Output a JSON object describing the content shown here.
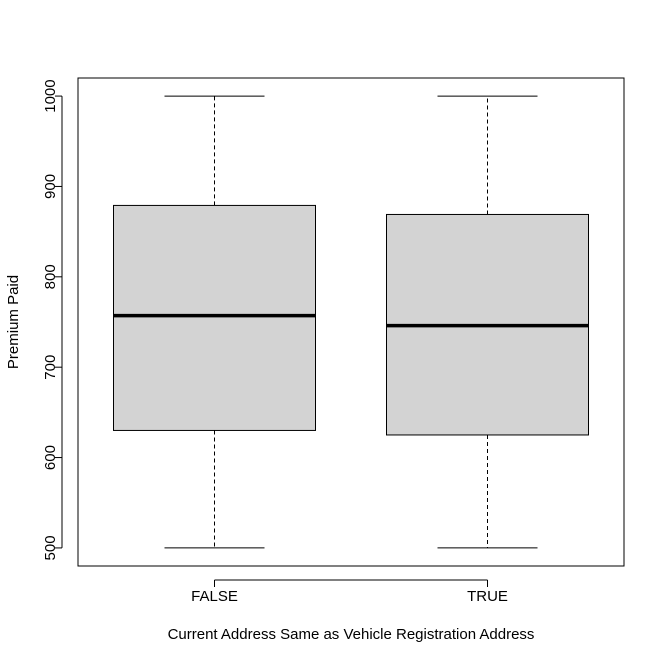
{
  "chart_data": {
    "type": "boxplot",
    "title": "",
    "xlabel": "Current Address Same as Vehicle Registration Address",
    "ylabel": "Premium Paid",
    "ylim": [
      480,
      1020
    ],
    "yticks": [
      500,
      600,
      700,
      800,
      900,
      1000
    ],
    "categories": [
      "FALSE",
      "TRUE"
    ],
    "box_fill": "#d3d3d3",
    "series": [
      {
        "category": "FALSE",
        "min": 500,
        "q1": 630,
        "median": 757,
        "q3": 879,
        "max": 1000
      },
      {
        "category": "TRUE",
        "min": 500,
        "q1": 625,
        "median": 746,
        "q3": 869,
        "max": 1000
      }
    ]
  }
}
